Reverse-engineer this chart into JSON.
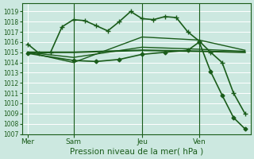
{
  "background_color": "#cce8e0",
  "grid_color": "#ffffff",
  "line_color": "#1a5c1a",
  "ylim": [
    1007,
    1019.8
  ],
  "yticks": [
    1007,
    1008,
    1009,
    1010,
    1011,
    1012,
    1013,
    1014,
    1015,
    1016,
    1017,
    1018,
    1019
  ],
  "xlabel": "Pression niveau de la mer( hPa )",
  "day_labels": [
    "Mer",
    "Sam",
    "Jeu",
    "Ven"
  ],
  "day_positions": [
    0,
    4,
    10,
    15
  ],
  "vlines": [
    4,
    10,
    15
  ],
  "series": [
    {
      "x": [
        0,
        1,
        2,
        3,
        4,
        5,
        6,
        7,
        8,
        9,
        10,
        11,
        12,
        13,
        14,
        15,
        16,
        17,
        18,
        19
      ],
      "y": [
        1015.8,
        1014.9,
        1015.0,
        1017.5,
        1018.2,
        1018.1,
        1017.6,
        1017.1,
        1018.0,
        1019.0,
        1018.3,
        1018.2,
        1018.5,
        1018.4,
        1017.0,
        1016.1,
        1015.0,
        1014.0,
        1011.0,
        1009.0
      ],
      "marker": "+",
      "linewidth": 1.2,
      "markersize": 4,
      "zorder": 4
    },
    {
      "x": [
        0,
        4,
        10,
        15,
        19
      ],
      "y": [
        1015.0,
        1015.0,
        1015.2,
        1015.1,
        1015.0
      ],
      "marker": null,
      "linewidth": 1.5,
      "markersize": 0,
      "zorder": 3
    },
    {
      "x": [
        0,
        4,
        10,
        15,
        19
      ],
      "y": [
        1015.0,
        1014.5,
        1015.5,
        1015.3,
        1015.1
      ],
      "marker": null,
      "linewidth": 1.0,
      "markersize": 0,
      "zorder": 3
    },
    {
      "x": [
        0,
        4,
        10,
        15,
        19
      ],
      "y": [
        1015.0,
        1014.0,
        1016.5,
        1016.2,
        1015.2
      ],
      "marker": null,
      "linewidth": 1.0,
      "markersize": 0,
      "zorder": 3
    },
    {
      "x": [
        0,
        4,
        6,
        8,
        10,
        12,
        14,
        15,
        16,
        17,
        18,
        19
      ],
      "y": [
        1014.9,
        1014.2,
        1014.1,
        1014.3,
        1014.8,
        1015.0,
        1015.2,
        1016.0,
        1013.1,
        1010.8,
        1008.6,
        1007.5
      ],
      "marker": "D",
      "linewidth": 1.2,
      "markersize": 2.5,
      "zorder": 4
    }
  ]
}
